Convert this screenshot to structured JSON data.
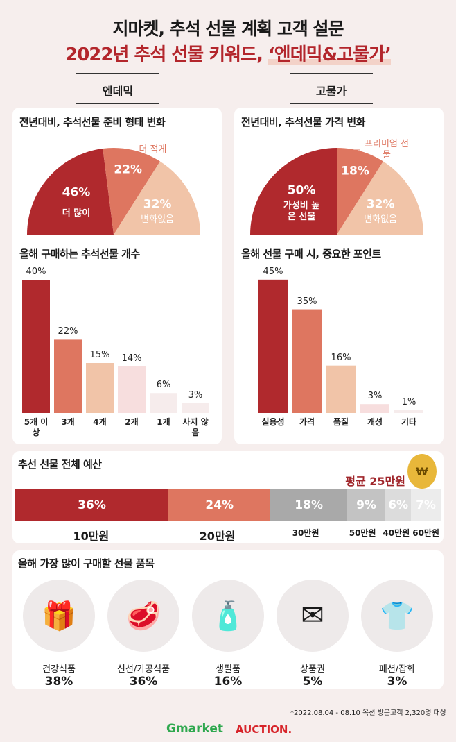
{
  "header": {
    "title": "지마켓, 추석 선물 계획 고객 설문",
    "subtitle_main": "2022년 추석 선물 키워드, ",
    "subtitle_highlight": "‘엔데믹&고물가’"
  },
  "sections": {
    "left": "엔데믹",
    "right": "고물가"
  },
  "colors": {
    "dark": "#b0292d",
    "mid": "#de7660",
    "light": "#f1c4a8",
    "pale": "#f7dede",
    "paler": "#f6ecec",
    "gray1": "#a9a9a9",
    "gray2": "#c3c3c3",
    "gray3": "#dcdcdc",
    "gray4": "#ececec"
  },
  "chart_data": [
    {
      "type": "pie",
      "title": "전년대비, 추석선물 준비 형태 변화",
      "layout": "half-donut",
      "slices": [
        {
          "label": "더 많이",
          "value": 46
        },
        {
          "label": "더 적게",
          "value": 22
        },
        {
          "label": "변화없음",
          "value": 32
        }
      ]
    },
    {
      "type": "pie",
      "title": "전년대비, 추석선물 가격 변화",
      "layout": "half-donut",
      "slices": [
        {
          "label": "가성비 높은 선물",
          "value": 50
        },
        {
          "label": "프리미엄 선물",
          "value": 18
        },
        {
          "label": "변화없음",
          "value": 32
        }
      ]
    },
    {
      "type": "bar",
      "title": "올해 구매하는 추석선물 개수",
      "categories": [
        "5개 이상",
        "3개",
        "4개",
        "2개",
        "1개",
        "사지 않음"
      ],
      "values": [
        40,
        22,
        15,
        14,
        6,
        3
      ],
      "unit": "%"
    },
    {
      "type": "bar",
      "title": "올해 선물 구매 시, 중요한 포인트",
      "categories": [
        "실용성",
        "가격",
        "품질",
        "개성",
        "기타"
      ],
      "values": [
        45,
        35,
        16,
        3,
        1
      ],
      "unit": "%"
    },
    {
      "type": "bar",
      "layout": "stacked-100",
      "title": "추선 선물 전체 예산",
      "annotation": "평균 25만원",
      "categories": [
        "10만원",
        "20만원",
        "30만원",
        "50만원",
        "40만원",
        "60만원"
      ],
      "values": [
        36,
        24,
        18,
        9,
        6,
        7
      ],
      "unit": "%"
    }
  ],
  "items": {
    "title": "올해 가장 많이 구매할 선물 품목",
    "list": [
      {
        "name": "건강식품",
        "pct": "38%",
        "icon": "ginseng-box-icon",
        "glyph": "🎁"
      },
      {
        "name": "신선/가공식품",
        "pct": "36%",
        "icon": "meat-gift-box-icon",
        "glyph": "🥩"
      },
      {
        "name": "생필품",
        "pct": "16%",
        "icon": "toiletries-icon",
        "glyph": "🧴"
      },
      {
        "name": "상품권",
        "pct": "5%",
        "icon": "gift-card-envelope-icon",
        "glyph": "✉"
      },
      {
        "name": "패션/잡화",
        "pct": "3%",
        "icon": "clothing-icon",
        "glyph": "👕"
      }
    ]
  },
  "footnote": "*2022.08.04 - 08.10 옥션 방문고객 2,320명 대상",
  "logos": {
    "gmarket": "Gmarket",
    "auction": "AUCTION."
  }
}
